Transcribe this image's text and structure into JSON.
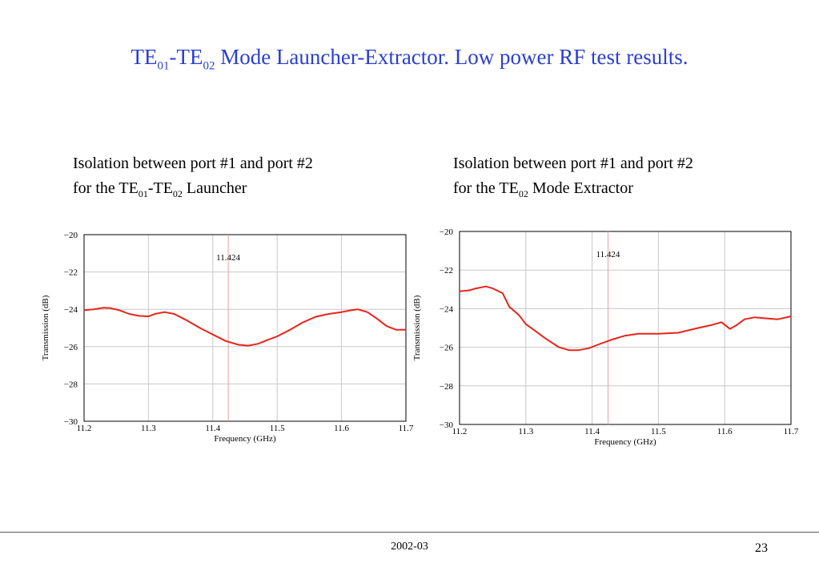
{
  "title": {
    "p1": "TE",
    "s1": "01",
    "p2": "-TE",
    "s2": "02",
    "p3": " Mode Launcher-Extractor. Low power RF test results."
  },
  "captions": {
    "left": {
      "line1": "Isolation between port #1 and port #2",
      "l2a": "for the TE",
      "l2s1": "01",
      "l2b": "-TE",
      "l2s2": "02",
      "l2c": " Launcher"
    },
    "right": {
      "line1": "Isolation between port #1 and port #2",
      "l2a": "for the TE",
      "l2s1": "02",
      "l2c": " Mode Extractor"
    }
  },
  "footer": {
    "date": "2002-03",
    "page": "23"
  },
  "colors": {
    "title": "#2b3fd0",
    "trace": "#e8241c",
    "grid": "#c8c8c8",
    "marker": "#e8a0a0"
  },
  "chart_data": [
    {
      "type": "line",
      "xlabel": "Frequency (GHz)",
      "ylabel": "Transmission (dB)",
      "xlim": [
        11.2,
        11.7
      ],
      "ylim": [
        -30,
        -20
      ],
      "xticks": [
        "11.2",
        "11.3",
        "11.4",
        "11.5",
        "11.6",
        "11.7"
      ],
      "yticks": [
        "−30",
        "−28",
        "−26",
        "−24",
        "−22",
        "−20"
      ],
      "grid": true,
      "marker": {
        "x": 11.424,
        "label": "11.424"
      },
      "series": [
        {
          "x": [
            11.2,
            11.215,
            11.23,
            11.24,
            11.255,
            11.27,
            11.285,
            11.3,
            11.31,
            11.325,
            11.34,
            11.36,
            11.38,
            11.4,
            11.42,
            11.44,
            11.455,
            11.47,
            11.485,
            11.5,
            11.52,
            11.54,
            11.56,
            11.58,
            11.6,
            11.615,
            11.625,
            11.64,
            11.655,
            11.67,
            11.685,
            11.7
          ],
          "y": [
            -24.05,
            -24.0,
            -23.92,
            -23.93,
            -24.05,
            -24.25,
            -24.35,
            -24.38,
            -24.25,
            -24.15,
            -24.25,
            -24.6,
            -25.0,
            -25.35,
            -25.7,
            -25.9,
            -25.95,
            -25.85,
            -25.65,
            -25.45,
            -25.1,
            -24.7,
            -24.4,
            -24.25,
            -24.15,
            -24.05,
            -24.0,
            -24.15,
            -24.5,
            -24.9,
            -25.1,
            -25.1
          ]
        }
      ]
    },
    {
      "type": "line",
      "xlabel": "Frequency (GHz)",
      "ylabel": "Transmission (dB)",
      "xlim": [
        11.2,
        11.7
      ],
      "ylim": [
        -30,
        -20
      ],
      "xticks": [
        "11.2",
        "11.3",
        "11.4",
        "11.5",
        "11.6",
        "11.7"
      ],
      "yticks": [
        "−30",
        "−28",
        "−26",
        "−24",
        "−22",
        "−20"
      ],
      "grid": true,
      "marker": {
        "x": 11.424,
        "label": "11.424"
      },
      "series": [
        {
          "x": [
            11.2,
            11.215,
            11.225,
            11.24,
            11.25,
            11.265,
            11.275,
            11.29,
            11.3,
            11.31,
            11.33,
            11.35,
            11.365,
            11.38,
            11.395,
            11.41,
            11.43,
            11.45,
            11.47,
            11.5,
            11.53,
            11.56,
            11.58,
            11.595,
            11.608,
            11.618,
            11.63,
            11.645,
            11.66,
            11.68,
            11.7
          ],
          "y": [
            -23.1,
            -23.05,
            -22.95,
            -22.85,
            -22.95,
            -23.2,
            -23.9,
            -24.35,
            -24.8,
            -25.05,
            -25.55,
            -26.0,
            -26.15,
            -26.15,
            -26.05,
            -25.85,
            -25.6,
            -25.4,
            -25.3,
            -25.3,
            -25.25,
            -25.0,
            -24.85,
            -24.7,
            -25.05,
            -24.85,
            -24.55,
            -24.45,
            -24.5,
            -24.55,
            -24.4
          ]
        }
      ]
    }
  ]
}
